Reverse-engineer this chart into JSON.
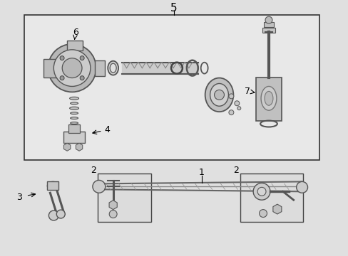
{
  "bg_color": "#e0e0e0",
  "box_facecolor": "#e8e8e8",
  "border_color": "#333333",
  "label_5": "5",
  "label_6": "6",
  "label_4": "4",
  "label_7": "7",
  "label_1": "1",
  "label_2a": "2",
  "label_2b": "2",
  "label_3": "3",
  "fig_width": 4.89,
  "fig_height": 3.6,
  "dpi": 100,
  "part_color": "#cccccc",
  "part_edge": "#555555",
  "dark_color": "#444444"
}
